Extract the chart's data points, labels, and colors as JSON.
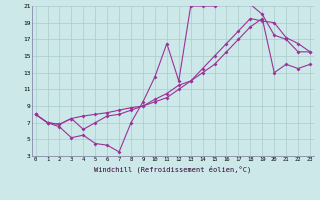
{
  "xlabel": "Windchill (Refroidissement éolien,°C)",
  "bg_color": "#cce8e8",
  "grid_color": "#aacccc",
  "line_color": "#993399",
  "line1_x": [
    0,
    1,
    2,
    3,
    4,
    5,
    6,
    7,
    8,
    9,
    10,
    11,
    12,
    13,
    14,
    15,
    16,
    17,
    18,
    19,
    20,
    21,
    22,
    23
  ],
  "line1_y": [
    8,
    7,
    6.5,
    5.2,
    5.5,
    4.5,
    4.3,
    3.5,
    7.0,
    9.5,
    12.5,
    16.5,
    12.0,
    21.0,
    21.0,
    21.0,
    21.2,
    21.2,
    21.2,
    20.0,
    17.5,
    17.0,
    15.5,
    15.5
  ],
  "line2_x": [
    0,
    1,
    2,
    3,
    4,
    5,
    6,
    7,
    8,
    9,
    10,
    11,
    12,
    13,
    14,
    15,
    16,
    17,
    18,
    19,
    20,
    21,
    22,
    23
  ],
  "line2_y": [
    8,
    7,
    6.8,
    7.5,
    6.2,
    7.0,
    7.8,
    8.0,
    8.5,
    9.0,
    9.8,
    10.5,
    11.5,
    12.0,
    13.5,
    15.0,
    16.5,
    18.0,
    19.5,
    19.2,
    19.0,
    17.2,
    16.5,
    15.5
  ],
  "line3_x": [
    0,
    1,
    2,
    3,
    4,
    5,
    6,
    7,
    8,
    9,
    10,
    11,
    12,
    13,
    14,
    15,
    16,
    17,
    18,
    19,
    20,
    21,
    22,
    23
  ],
  "line3_y": [
    8,
    7,
    6.8,
    7.5,
    7.8,
    8.0,
    8.2,
    8.5,
    8.8,
    9.0,
    9.5,
    10.0,
    11.0,
    12.0,
    13.0,
    14.0,
    15.5,
    17.0,
    18.5,
    19.5,
    13.0,
    14.0,
    13.5,
    14.0
  ],
  "xmin": 0,
  "xmax": 23,
  "ymin": 3,
  "ymax": 21,
  "yticks": [
    3,
    5,
    7,
    9,
    11,
    13,
    15,
    17,
    19,
    21
  ],
  "xticks": [
    0,
    1,
    2,
    3,
    4,
    5,
    6,
    7,
    8,
    9,
    10,
    11,
    12,
    13,
    14,
    15,
    16,
    17,
    18,
    19,
    20,
    21,
    22,
    23
  ]
}
